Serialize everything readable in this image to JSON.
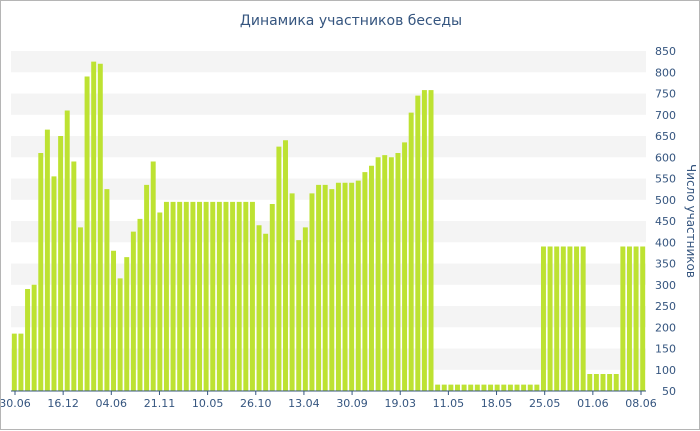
{
  "chart_data": {
    "type": "bar",
    "title": "Динамика участников беседы",
    "xlabel": "",
    "ylabel": "Число участников",
    "ylim": [
      50,
      850
    ],
    "yticks": [
      50,
      100,
      150,
      200,
      250,
      300,
      350,
      400,
      450,
      500,
      550,
      600,
      650,
      700,
      750,
      800,
      850
    ],
    "grid": "horizontal bands",
    "x_tick_labels": [
      "30.06",
      "16.12",
      "04.06",
      "21.11",
      "10.05",
      "26.10",
      "13.04",
      "30.09",
      "19.03",
      "11.05",
      "18.05",
      "25.05",
      "01.06",
      "08.06"
    ],
    "bar_color": "#bde232",
    "values": [
      185,
      185,
      290,
      300,
      610,
      665,
      555,
      650,
      710,
      590,
      435,
      790,
      825,
      820,
      525,
      380,
      315,
      365,
      425,
      455,
      535,
      590,
      470,
      495,
      495,
      495,
      495,
      495,
      495,
      495,
      495,
      495,
      495,
      495,
      495,
      495,
      495,
      440,
      420,
      490,
      625,
      640,
      515,
      405,
      435,
      515,
      535,
      535,
      525,
      540,
      540,
      540,
      545,
      565,
      580,
      600,
      605,
      600,
      610,
      635,
      705,
      745,
      758,
      758,
      65,
      65,
      65,
      65,
      65,
      65,
      65,
      65,
      65,
      65,
      65,
      65,
      65,
      65,
      65,
      65,
      390,
      390,
      390,
      390,
      390,
      390,
      390,
      90,
      90,
      90,
      90,
      90,
      390,
      390,
      390,
      390
    ]
  }
}
